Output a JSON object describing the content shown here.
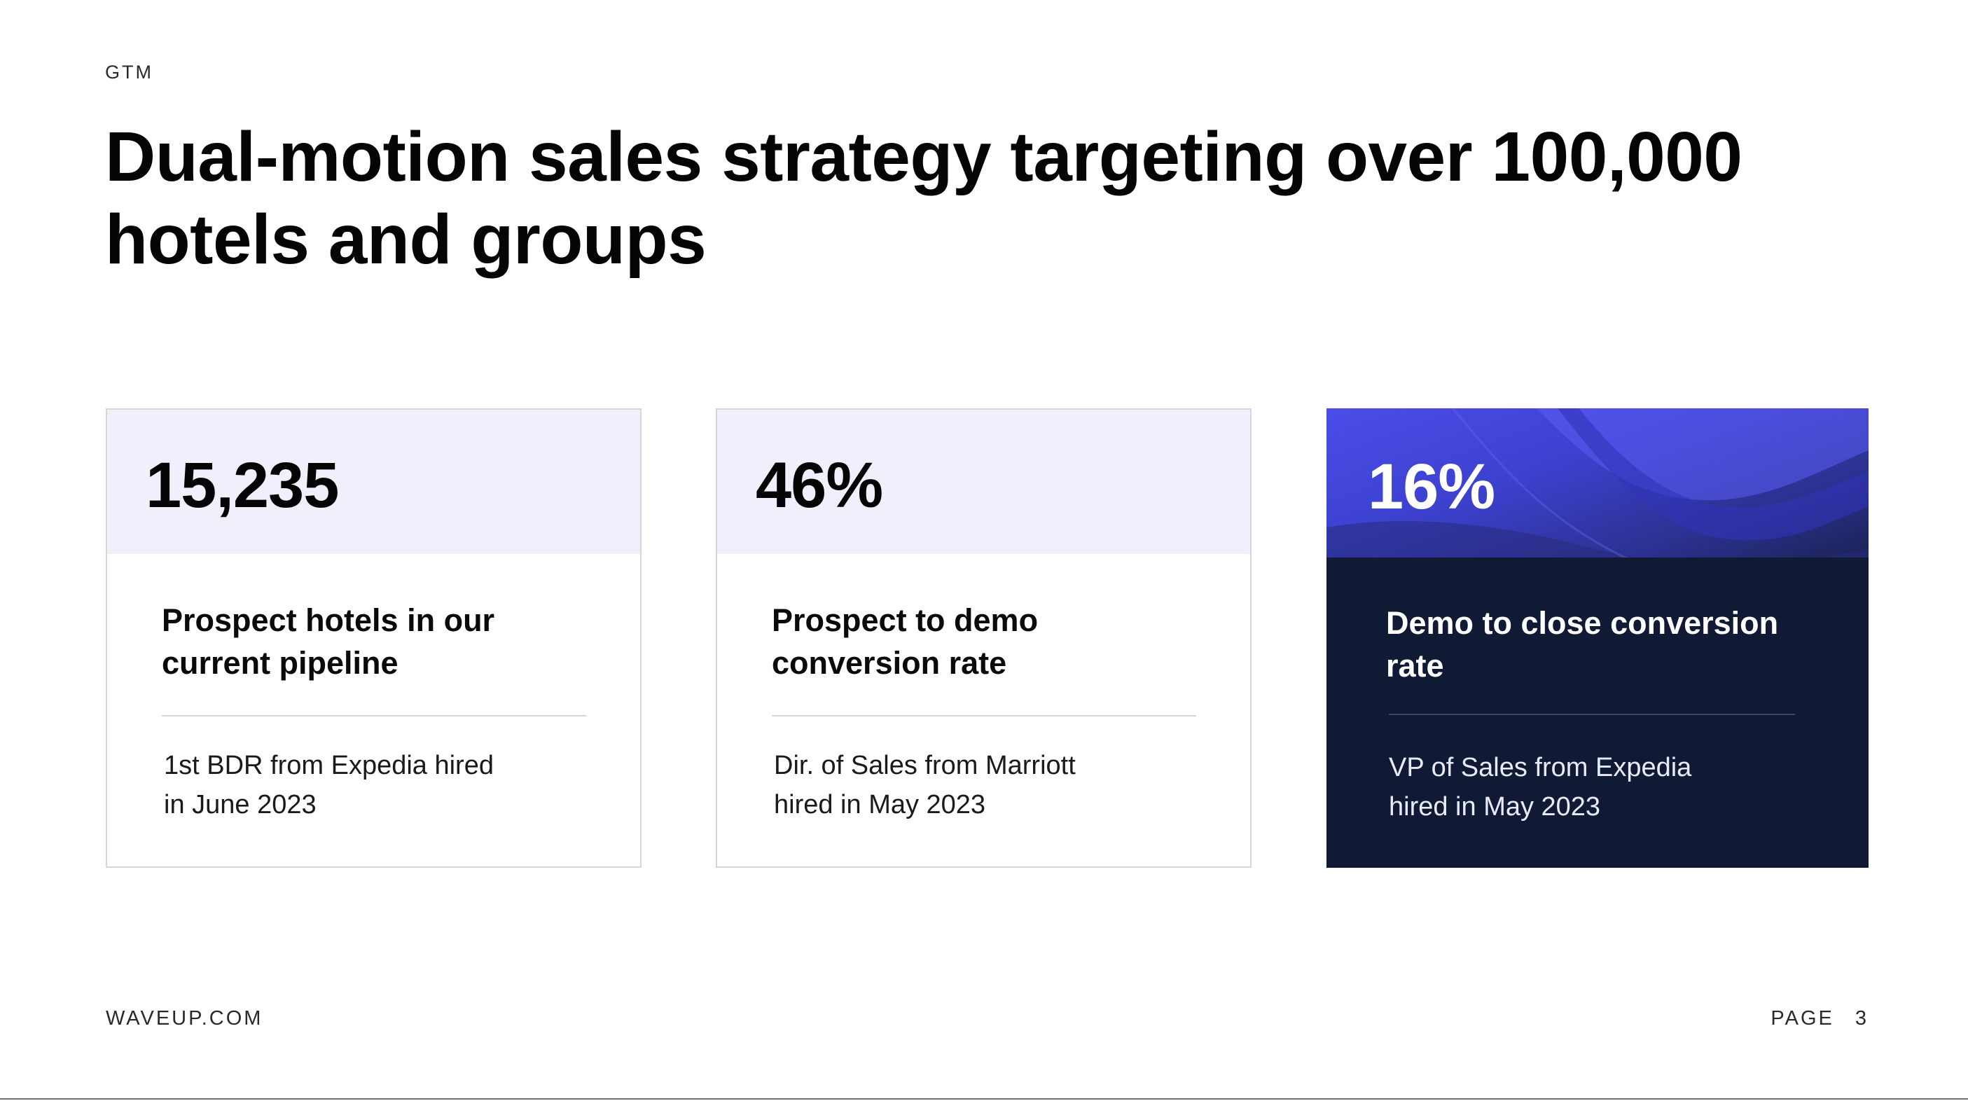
{
  "header": {
    "section_tag": "GTM",
    "title": "Dual-motion sales strategy targeting over 100,000 hotels and groups"
  },
  "cards": [
    {
      "metric": "15,235",
      "label": "Prospect hotels in our current pipeline",
      "note_line1": "1st BDR from Expedia hired",
      "note_line2": "in June 2023"
    },
    {
      "metric": "46%",
      "label": "Prospect to demo conversion rate",
      "note_line1": "Dir. of Sales from Marriott",
      "note_line2": "hired in May 2023"
    },
    {
      "metric": "16%",
      "label": "Demo to close conversion rate",
      "note_line1": "VP of Sales from Expedia",
      "note_line2": "hired in May 2023"
    }
  ],
  "footer": {
    "site": "WAVEUP.COM",
    "page_label": "PAGE",
    "page_number": "3"
  },
  "colors": {
    "card_top_tint": "#f0f0fd",
    "highlight_card_bg": "#111a35",
    "highlight_accent": "#4a4de8"
  }
}
